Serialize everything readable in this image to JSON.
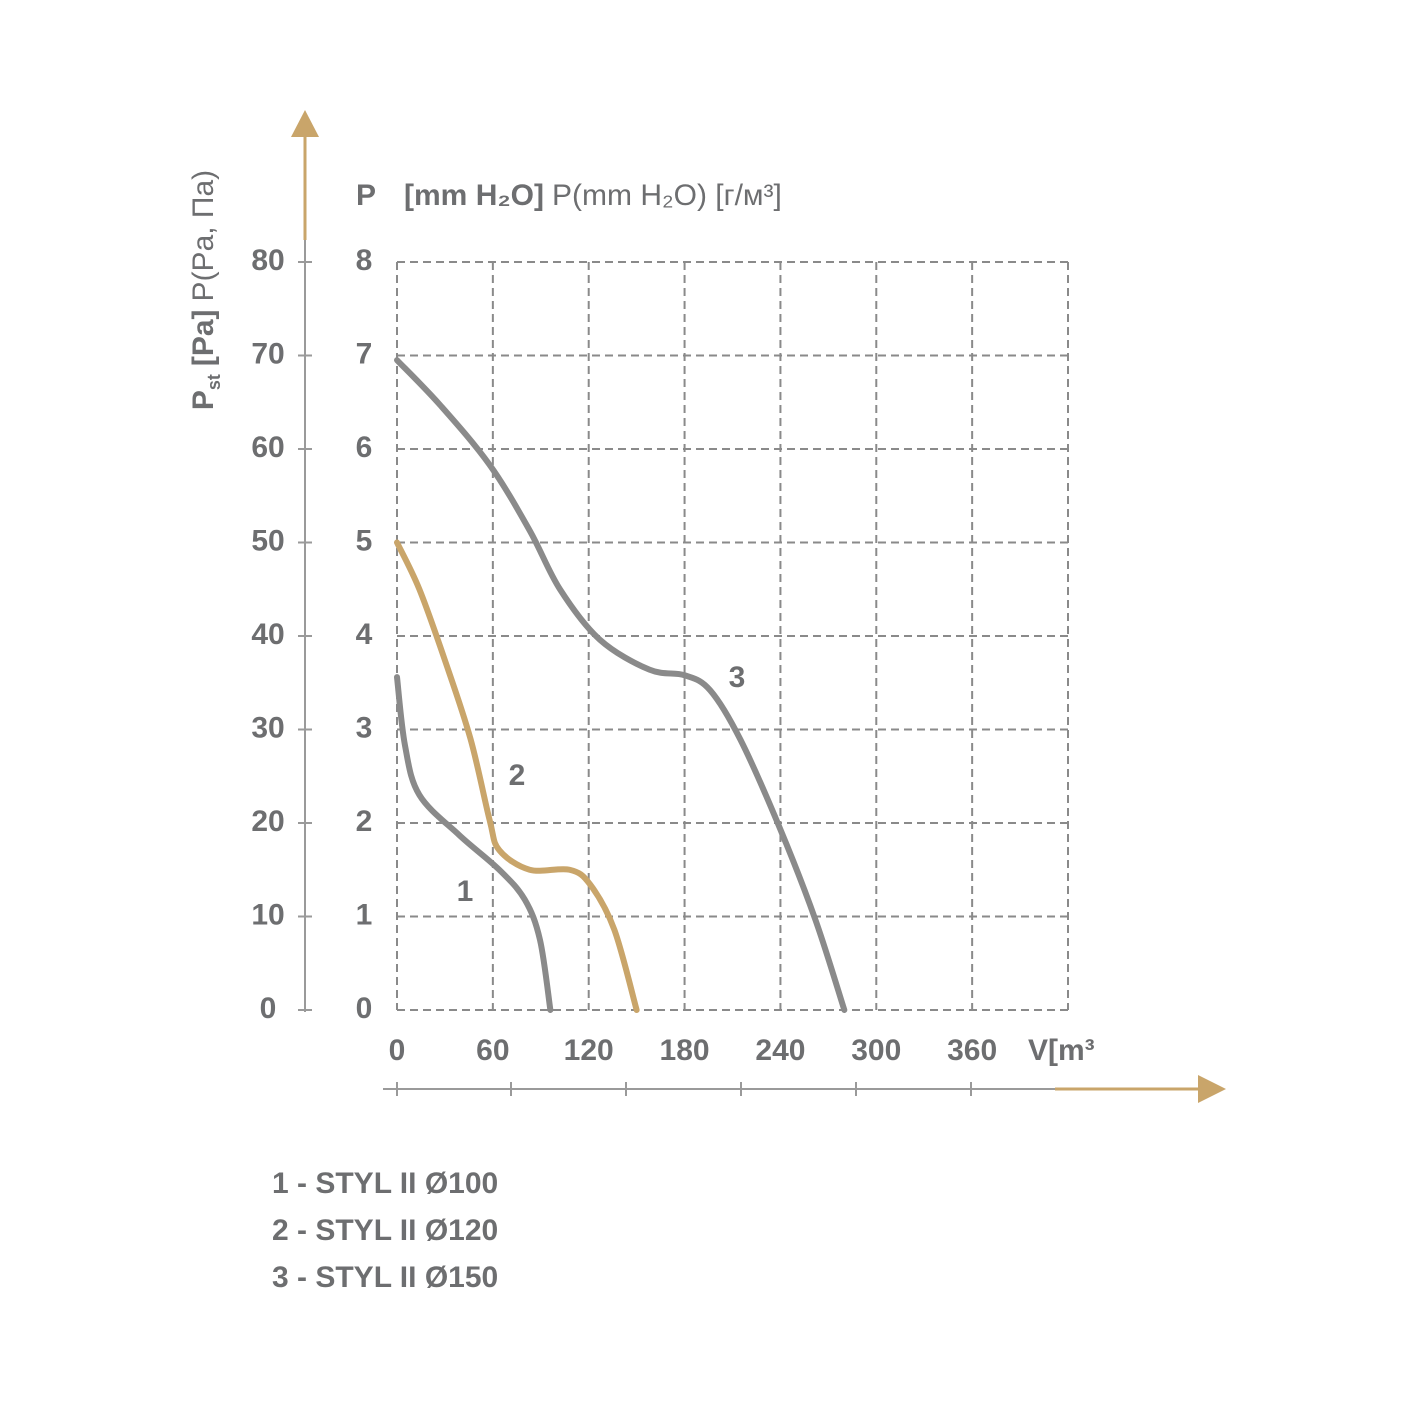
{
  "chart_data": {
    "type": "line",
    "y_label": {
      "main": "P",
      "sub": "st",
      "unit": "[Pa]",
      "alt": "P(Pa, Па)"
    },
    "y2_label": {
      "main": "P",
      "unit": "[mm H₂O]",
      "alt": "P(mm H₂O) [г/м³]"
    },
    "x_label": "V[m³",
    "xlim": [
      0,
      420
    ],
    "xticks": [
      0,
      60,
      120,
      180,
      240,
      300,
      360
    ],
    "ylim": [
      0,
      80
    ],
    "yticks": [
      0,
      10,
      20,
      30,
      40,
      50,
      60,
      70,
      80
    ],
    "y2lim": [
      0,
      8
    ],
    "y2ticks": [
      0,
      1,
      2,
      3,
      4,
      5,
      6,
      7,
      8
    ],
    "grid": true,
    "series": [
      {
        "name": "1 - STYL II Ø100",
        "label": "1",
        "color": "#8a8a8a",
        "x": [
          0,
          5,
          14,
          39,
          64,
          80,
          89.5,
          96
        ],
        "values": [
          35.6,
          28.3,
          23,
          18.7,
          15,
          11.8,
          7.5,
          0
        ]
      },
      {
        "name": "2 - STYL II Ø120",
        "label": "2",
        "color": "#c9a56a",
        "x": [
          0,
          14,
          30,
          46,
          58,
          64,
          83,
          108,
          121,
          136,
          150
        ],
        "values": [
          50,
          45,
          37.4,
          29,
          20.3,
          17.1,
          15,
          15,
          13.4,
          8.6,
          0
        ]
      },
      {
        "name": "3 - STYL II Ø150",
        "label": "3",
        "color": "#8a8a8a",
        "x": [
          0,
          27,
          58,
          83,
          102,
          127,
          158,
          180,
          196,
          215,
          240,
          262,
          280
        ],
        "values": [
          69.5,
          64.7,
          58.3,
          51.3,
          45,
          39.6,
          36.4,
          35.8,
          34.2,
          28.9,
          19.3,
          9.6,
          0
        ]
      }
    ]
  }
}
